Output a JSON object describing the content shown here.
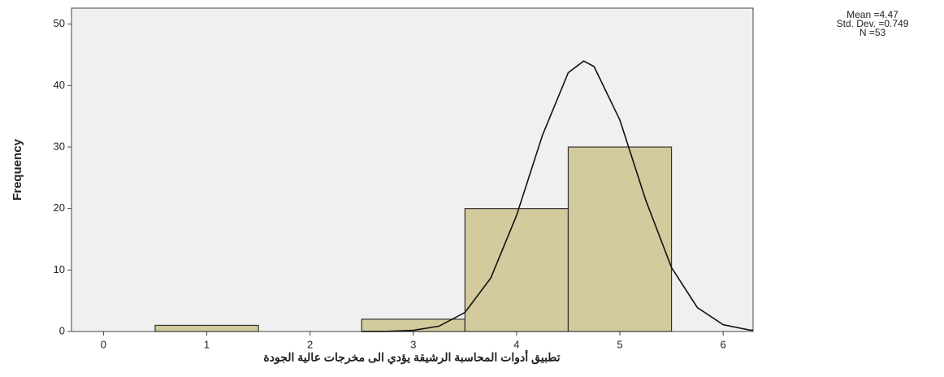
{
  "chart_data": {
    "type": "histogram",
    "x_label": "تطبيق أدوات المحاسبة الرشيقة يؤدي الى مخرجات عالية الجودة",
    "y_label": "Frequency",
    "bins": [
      0.5,
      1.5,
      2.5,
      3.5,
      4.5,
      5.5
    ],
    "counts": [
      1,
      0,
      2,
      20,
      30
    ],
    "color": "#d3cb9d",
    "stats": [
      "Mean =4.47",
      "Std. Dev. =0.749",
      "N =53"
    ],
    "normal_curve": {
      "x": [
        2.5,
        2.75,
        3.0,
        3.25,
        3.5,
        3.75,
        4.0,
        4.25,
        4.5,
        4.65,
        4.75,
        5.0,
        5.25,
        5.5,
        5.75,
        6.0,
        6.25,
        6.29
      ],
      "values": [
        0.0,
        0.03,
        0.19,
        0.87,
        3.1,
        8.7,
        18.9,
        31.9,
        42.1,
        44,
        43.1,
        34.4,
        21.4,
        10.4,
        3.9,
        1.1,
        0.26,
        0.2
      ]
    },
    "xlim": [
      -0.31,
      6.29
    ],
    "xticks": [
      0,
      1,
      2,
      3,
      4,
      5,
      6
    ],
    "ylim": [
      0,
      52.6
    ],
    "yticks": [
      0,
      10,
      20,
      30,
      40,
      50
    ],
    "grid": false
  }
}
